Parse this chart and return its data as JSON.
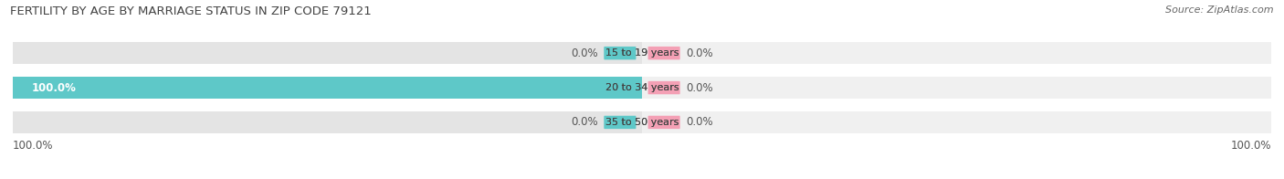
{
  "title": "FERTILITY BY AGE BY MARRIAGE STATUS IN ZIP CODE 79121",
  "source": "Source: ZipAtlas.com",
  "categories": [
    "15 to 19 years",
    "20 to 34 years",
    "35 to 50 years"
  ],
  "married": [
    0.0,
    100.0,
    0.0
  ],
  "unmarried": [
    0.0,
    0.0,
    0.0
  ],
  "married_color": "#5ec8c8",
  "unmarried_color": "#f4a0b5",
  "bar_bg_color": "#e4e4e4",
  "bar_bg_color2": "#f0f0f0",
  "xlim": 100.0,
  "title_fontsize": 9.5,
  "source_fontsize": 8.0,
  "label_fontsize": 8.5,
  "category_fontsize": 8.0,
  "legend_fontsize": 8.5,
  "bottom_labels": [
    "100.0%",
    "100.0%"
  ],
  "figsize": [
    14.06,
    1.96
  ],
  "dpi": 100
}
